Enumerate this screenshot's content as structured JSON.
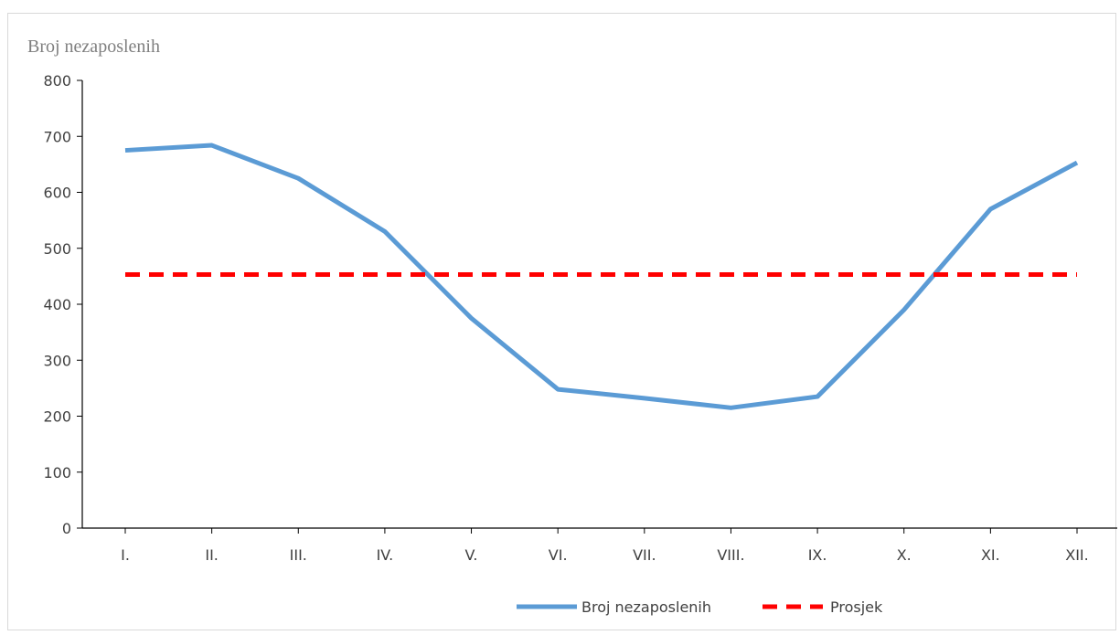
{
  "chart_data": {
    "type": "line",
    "title": "",
    "ylabel": "Broj nezaposlenih",
    "xlabel": "",
    "categories": [
      "I.",
      "II.",
      "III.",
      "IV.",
      "V.",
      "VI.",
      "VII.",
      "VIII.",
      "IX.",
      "X.",
      "XI.",
      "XII."
    ],
    "yticks": [
      "0",
      "100",
      "200",
      "300",
      "400",
      "500",
      "600",
      "700",
      "800"
    ],
    "ylim": [
      0,
      800
    ],
    "grid": false,
    "legend_position": "bottom",
    "series": [
      {
        "name": "Broj nezaposlenih",
        "color": "#5b9bd5",
        "style": "solid",
        "values": [
          675,
          684,
          625,
          530,
          375,
          248,
          232,
          215,
          235,
          390,
          570,
          653
        ]
      },
      {
        "name": "Prosjek",
        "color": "#ff0000",
        "style": "dashed",
        "values": [
          453,
          453,
          453,
          453,
          453,
          453,
          453,
          453,
          453,
          453,
          453,
          453
        ]
      }
    ]
  }
}
